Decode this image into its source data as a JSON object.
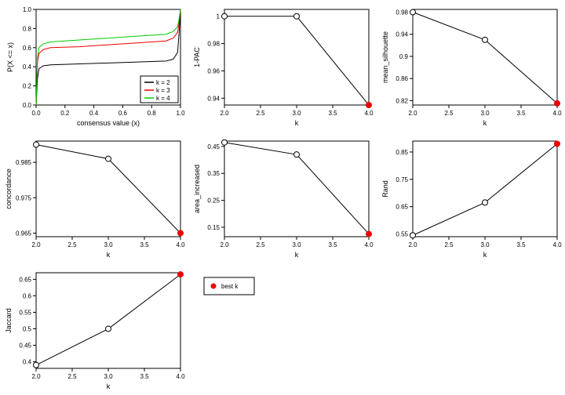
{
  "global": {
    "background_color": "#ffffff",
    "axis_color": "#000000",
    "tick_font_size": 8,
    "axis_title_font_size": 9,
    "point_open_color": "#000000",
    "point_bestk_color": "#ee0000",
    "line_color": "#000000",
    "k_ticks": [
      2.0,
      2.5,
      3.0,
      3.5,
      4.0
    ],
    "k_label": "k"
  },
  "cdf": {
    "xlabel": "consensus value (x)",
    "ylabel": "P(X <= x)",
    "xlim": [
      0,
      1
    ],
    "ylim": [
      0,
      1
    ],
    "xticks": [
      0.0,
      0.2,
      0.4,
      0.6,
      0.8,
      1.0
    ],
    "yticks": [
      0.0,
      0.2,
      0.4,
      0.6,
      0.8,
      1.0
    ],
    "line_width": 1,
    "series": [
      {
        "name": "k = 2",
        "color": "#000000",
        "x": [
          0.0,
          0.01,
          0.02,
          0.05,
          0.1,
          0.3,
          0.5,
          0.7,
          0.9,
          0.95,
          0.98,
          0.99,
          1.0
        ],
        "y": [
          0.0,
          0.28,
          0.38,
          0.41,
          0.42,
          0.43,
          0.44,
          0.45,
          0.46,
          0.48,
          0.55,
          0.75,
          1.0
        ]
      },
      {
        "name": "k = 3",
        "color": "#ee0000",
        "x": [
          0.0,
          0.01,
          0.02,
          0.05,
          0.1,
          0.3,
          0.5,
          0.7,
          0.9,
          0.95,
          0.98,
          0.99,
          1.0
        ],
        "y": [
          0.0,
          0.45,
          0.54,
          0.58,
          0.6,
          0.61,
          0.63,
          0.65,
          0.67,
          0.7,
          0.76,
          0.86,
          1.0
        ]
      },
      {
        "name": "k = 4",
        "color": "#00cc00",
        "x": [
          0.0,
          0.01,
          0.02,
          0.05,
          0.1,
          0.3,
          0.5,
          0.7,
          0.9,
          0.95,
          0.98,
          0.99,
          1.0
        ],
        "y": [
          0.0,
          0.5,
          0.6,
          0.64,
          0.66,
          0.68,
          0.7,
          0.72,
          0.74,
          0.77,
          0.82,
          0.9,
          1.0
        ]
      }
    ],
    "legend": {
      "items": [
        {
          "label": "k = 2",
          "color": "#000000"
        },
        {
          "label": "k = 3",
          "color": "#ee0000"
        },
        {
          "label": "k = 4",
          "color": "#00cc00"
        }
      ]
    }
  },
  "panels": [
    {
      "id": "one_pac",
      "ylabel": "1-PAC",
      "yticks": [
        0.94,
        0.96,
        0.98,
        1.0
      ],
      "ylim": [
        0.935,
        1.005
      ],
      "points": [
        {
          "k": 2,
          "y": 1.0,
          "best": false
        },
        {
          "k": 3,
          "y": 1.0,
          "best": false
        },
        {
          "k": 4,
          "y": 0.935,
          "best": true
        }
      ]
    },
    {
      "id": "mean_sil",
      "ylabel": "mean_silhouette",
      "yticks": [
        0.82,
        0.86,
        0.9,
        0.94,
        0.98
      ],
      "ylim": [
        0.812,
        0.985
      ],
      "points": [
        {
          "k": 2,
          "y": 0.98,
          "best": false
        },
        {
          "k": 3,
          "y": 0.93,
          "best": false
        },
        {
          "k": 4,
          "y": 0.815,
          "best": true
        }
      ]
    },
    {
      "id": "concordance",
      "ylabel": "concordance",
      "yticks": [
        0.965,
        0.975,
        0.985
      ],
      "ylim": [
        0.964,
        0.991
      ],
      "points": [
        {
          "k": 2,
          "y": 0.99,
          "best": false
        },
        {
          "k": 3,
          "y": 0.986,
          "best": false
        },
        {
          "k": 4,
          "y": 0.965,
          "best": true
        }
      ]
    },
    {
      "id": "area_inc",
      "ylabel": "area_increased",
      "yticks": [
        0.15,
        0.25,
        0.35,
        0.45
      ],
      "ylim": [
        0.115,
        0.47
      ],
      "points": [
        {
          "k": 2,
          "y": 0.465,
          "best": false
        },
        {
          "k": 3,
          "y": 0.42,
          "best": false
        },
        {
          "k": 4,
          "y": 0.125,
          "best": true
        }
      ]
    },
    {
      "id": "rand",
      "ylabel": "Rand",
      "yticks": [
        0.55,
        0.65,
        0.75,
        0.85
      ],
      "ylim": [
        0.54,
        0.89
      ],
      "points": [
        {
          "k": 2,
          "y": 0.545,
          "best": false
        },
        {
          "k": 3,
          "y": 0.665,
          "best": false
        },
        {
          "k": 4,
          "y": 0.88,
          "best": true
        }
      ]
    },
    {
      "id": "jaccard",
      "ylabel": "Jaccard",
      "yticks": [
        0.4,
        0.45,
        0.5,
        0.55,
        0.6,
        0.65
      ],
      "ylim": [
        0.38,
        0.67
      ],
      "points": [
        {
          "k": 2,
          "y": 0.39,
          "best": false
        },
        {
          "k": 3,
          "y": 0.5,
          "best": false
        },
        {
          "k": 4,
          "y": 0.665,
          "best": true
        }
      ]
    }
  ],
  "bestk_legend": {
    "label": "best k",
    "color": "#ee0000"
  }
}
